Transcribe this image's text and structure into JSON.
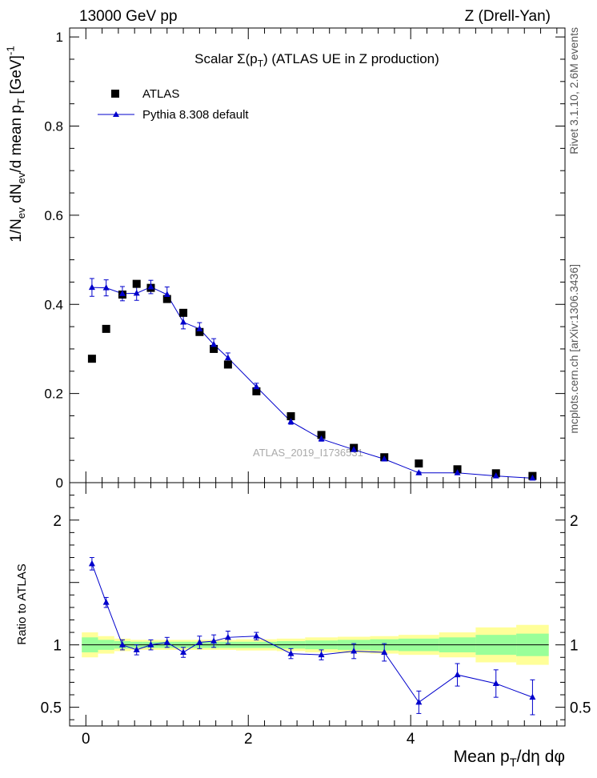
{
  "header": {
    "energy_label": "13000 GeV pp",
    "process_label": "Z (Drell-Yan)",
    "plot_title": "Scalar Σ(p_T) (ATLAS UE in Z production)",
    "watermark": "ATLAS_2019_I1736531",
    "side_label_top": "Rivet 3.1.10, 2.6M events",
    "side_label_bottom": "mcplots.cern.ch [arXiv:1306.3436]"
  },
  "colors": {
    "data": "#000000",
    "mc": "#0000cc",
    "band_inner": "#99ff99",
    "band_outer": "#ffff99"
  },
  "chart_data": [
    {
      "type": "scatter",
      "ylabel": "1/N_ev dN_ev/d mean p_T [GeV]^-1",
      "xlim": [
        -0.2,
        5.9
      ],
      "ylim": [
        0,
        1.02
      ],
      "y_ticks": [
        0,
        0.2,
        0.4,
        0.6,
        0.8,
        1
      ],
      "y_tick_labels": [
        "0",
        "0.2",
        "0.4",
        "0.6",
        "0.8",
        "1"
      ],
      "legend": {
        "position": "top-left"
      },
      "series": [
        {
          "name": "ATLAS",
          "marker": "square",
          "x": [
            0.075,
            0.25,
            0.45,
            0.625,
            0.8,
            1.0,
            1.2,
            1.4,
            1.575,
            1.75,
            2.1,
            2.525,
            2.9,
            3.3,
            3.675,
            4.1,
            4.575,
            5.05,
            5.5
          ],
          "y": [
            0.278,
            0.345,
            0.422,
            0.446,
            0.437,
            0.412,
            0.381,
            0.338,
            0.3,
            0.265,
            0.205,
            0.149,
            0.107,
            0.078,
            0.057,
            0.043,
            0.03,
            0.021,
            0.015
          ]
        },
        {
          "name": "Pythia 8.308 default",
          "marker": "triangle",
          "x": [
            0.075,
            0.25,
            0.45,
            0.625,
            0.8,
            1.0,
            1.2,
            1.4,
            1.575,
            1.75,
            2.1,
            2.525,
            2.9,
            3.3,
            3.675,
            4.1,
            4.575,
            5.05,
            5.5
          ],
          "y": [
            0.438,
            0.437,
            0.424,
            0.425,
            0.439,
            0.422,
            0.36,
            0.345,
            0.31,
            0.28,
            0.215,
            0.137,
            0.098,
            0.074,
            0.053,
            0.022,
            0.022,
            0.015,
            0.01
          ],
          "yerr": [
            0.02,
            0.018,
            0.016,
            0.016,
            0.015,
            0.017,
            0.015,
            0.014,
            0.013,
            0.011,
            0.008,
            0.006,
            0.005,
            0.004,
            0.003,
            0.002,
            0.002,
            0.002,
            0.002
          ]
        }
      ]
    },
    {
      "type": "line",
      "xlabel": "Mean p_T/dη dφ",
      "ylabel": "Ratio to ATLAS",
      "xlim": [
        -0.2,
        5.9
      ],
      "ylim": [
        0.35,
        2.3
      ],
      "x_ticks": [
        0,
        2,
        4
      ],
      "x_tick_labels": [
        "0",
        "2",
        "4"
      ],
      "y_ticks": [
        0.5,
        1,
        2
      ],
      "y_tick_labels": [
        "0.5",
        "1",
        "2"
      ],
      "reference_line": 1,
      "bands": {
        "edges": [
          -0.05,
          0.15,
          0.35,
          0.55,
          0.7,
          0.9,
          1.1,
          1.3,
          1.5,
          1.65,
          1.85,
          2.35,
          2.7,
          3.1,
          3.5,
          3.85,
          4.35,
          4.8,
          5.3,
          5.7
        ],
        "inner": [
          0.06,
          0.04,
          0.03,
          0.025,
          0.025,
          0.025,
          0.025,
          0.025,
          0.025,
          0.025,
          0.025,
          0.03,
          0.035,
          0.04,
          0.045,
          0.05,
          0.06,
          0.08,
          0.09
        ],
        "outer": [
          0.1,
          0.07,
          0.05,
          0.04,
          0.04,
          0.04,
          0.04,
          0.04,
          0.04,
          0.04,
          0.045,
          0.05,
          0.06,
          0.065,
          0.07,
          0.08,
          0.1,
          0.14,
          0.16
        ]
      },
      "series": [
        {
          "name": "Pythia 8.308 default",
          "marker": "triangle",
          "x": [
            0.075,
            0.25,
            0.45,
            0.625,
            0.8,
            1.0,
            1.2,
            1.4,
            1.575,
            1.75,
            2.1,
            2.525,
            2.9,
            3.3,
            3.675,
            4.1,
            4.575,
            5.05,
            5.5
          ],
          "y": [
            1.65,
            1.34,
            1.0,
            0.96,
            1.0,
            1.02,
            0.94,
            1.02,
            1.03,
            1.06,
            1.07,
            0.93,
            0.92,
            0.95,
            0.94,
            0.54,
            0.76,
            0.69,
            0.58
          ],
          "yerr": [
            0.05,
            0.04,
            0.04,
            0.04,
            0.04,
            0.04,
            0.04,
            0.05,
            0.05,
            0.05,
            0.03,
            0.04,
            0.04,
            0.06,
            0.07,
            0.09,
            0.09,
            0.11,
            0.14
          ]
        }
      ]
    }
  ]
}
